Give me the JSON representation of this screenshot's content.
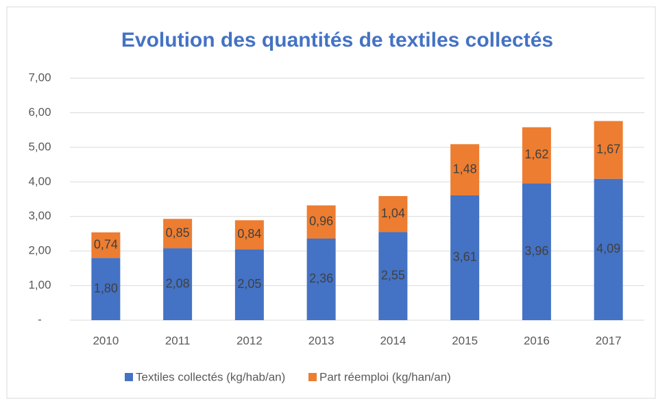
{
  "chart_data": {
    "type": "stacked_bar",
    "title": "Evolution des quantités de textiles collectés",
    "categories": [
      "2010",
      "2011",
      "2012",
      "2013",
      "2014",
      "2015",
      "2016",
      "2017"
    ],
    "series": [
      {
        "name": "Textiles collectés (kg/hab/an)",
        "color": "#4472c4",
        "values": [
          1.8,
          2.08,
          2.05,
          2.36,
          2.55,
          3.61,
          3.96,
          4.09
        ],
        "value_labels": [
          "1,80",
          "2,08",
          "2,05",
          "2,36",
          "2,55",
          "3,61",
          "3,96",
          "4,09"
        ]
      },
      {
        "name": "Part réemploi (kg/han/an)",
        "color": "#ed7d31",
        "values": [
          0.74,
          0.85,
          0.84,
          0.96,
          1.04,
          1.48,
          1.62,
          1.67
        ],
        "value_labels": [
          "0,74",
          "0,85",
          "0,84",
          "0,96",
          "1,04",
          "1,48",
          "1,62",
          "1,67"
        ]
      }
    ],
    "ylim": [
      0,
      7
    ],
    "yticks": [
      {
        "value": 0,
        "label": "-"
      },
      {
        "value": 1,
        "label": "1,00"
      },
      {
        "value": 2,
        "label": "2,00"
      },
      {
        "value": 3,
        "label": "3,00"
      },
      {
        "value": 4,
        "label": "4,00"
      },
      {
        "value": 5,
        "label": "5,00"
      },
      {
        "value": 6,
        "label": "6,00"
      },
      {
        "value": 7,
        "label": "7,00"
      }
    ],
    "grid": true,
    "legend": "bottom"
  }
}
